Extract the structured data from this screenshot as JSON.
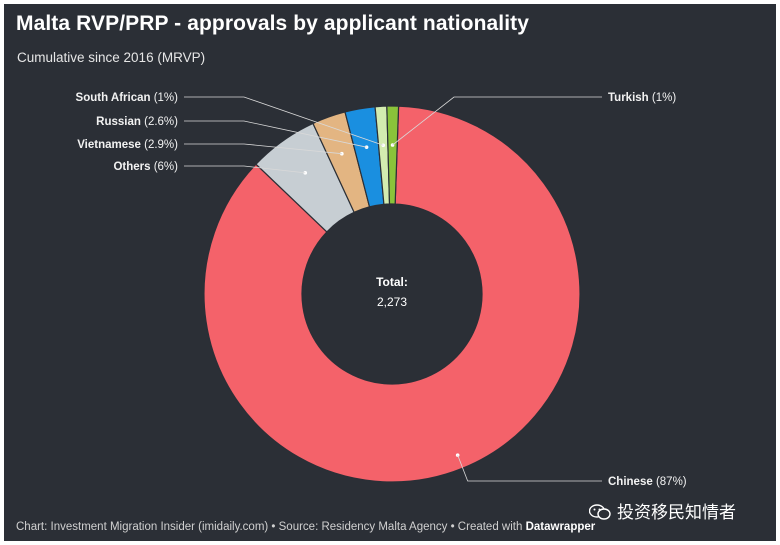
{
  "header": {
    "title": "Malta RVP/PRP - approvals by applicant nationality",
    "subtitle": "Cumulative since 2016 (MRVP)"
  },
  "footer": {
    "text": "Chart: Investment Migration Insider (imidaily.com) • Source: Residency Malta Agency • Created with ",
    "tool": "Datawrapper"
  },
  "watermark": {
    "text": "投资移民知情者"
  },
  "chart_data": {
    "type": "pie",
    "donut": true,
    "center_label": {
      "title": "Total:",
      "value": "2,273"
    },
    "slices": [
      {
        "label": "Chinese",
        "value": 87,
        "display": "(87%)",
        "color": "#f4626a"
      },
      {
        "label": "Others",
        "value": 6,
        "display": "(6%)",
        "color": "#c7ced3"
      },
      {
        "label": "Vietnamese",
        "value": 2.9,
        "display": "(2.9%)",
        "color": "#e3b582"
      },
      {
        "label": "Russian",
        "value": 2.6,
        "display": "(2.6%)",
        "color": "#1a8fe0"
      },
      {
        "label": "South African",
        "value": 1,
        "display": "(1%)",
        "color": "#d3ecb0"
      },
      {
        "label": "Turkish",
        "value": 1,
        "display": "(1%)",
        "color": "#8ac33a"
      }
    ],
    "background": "#2b2f36"
  }
}
